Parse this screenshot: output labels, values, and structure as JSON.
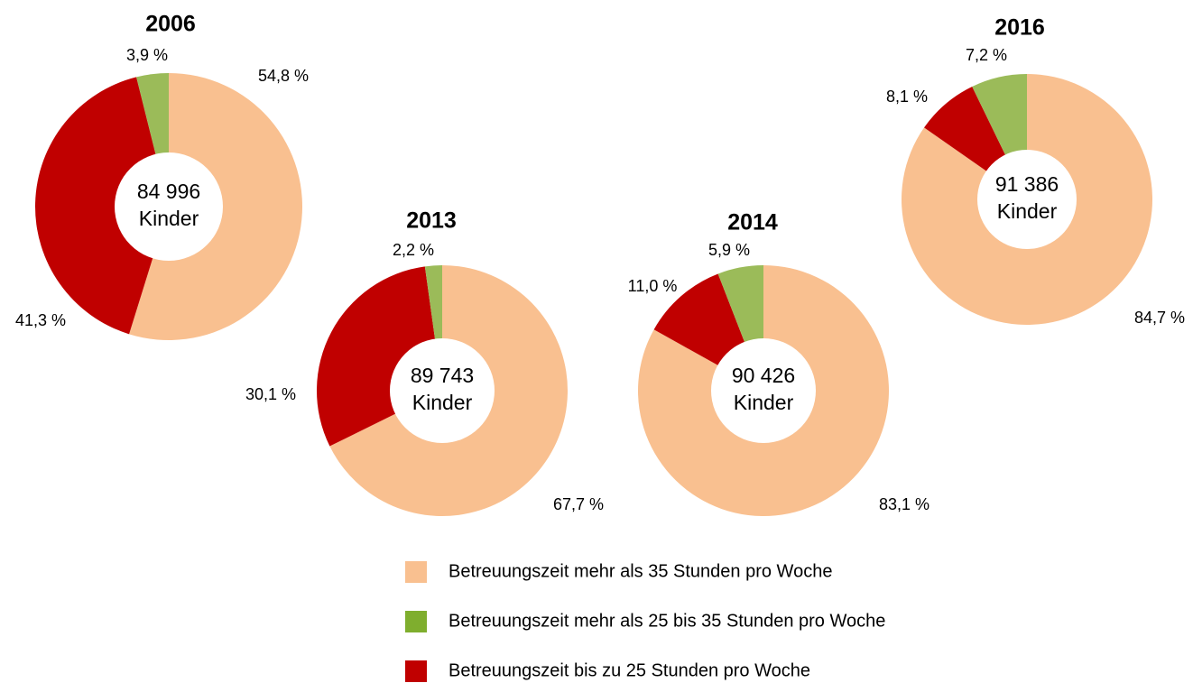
{
  "chart_data": [
    {
      "type": "pie",
      "title": "2006",
      "center_label": [
        "84 996",
        "Kinder"
      ],
      "values": [
        54.8,
        41.3,
        3.9
      ],
      "value_labels": [
        "54,8 %",
        "41,3 %",
        "3,9 %"
      ],
      "colors": [
        "#f9c090",
        "#c00000",
        "#9bbb59"
      ]
    },
    {
      "type": "pie",
      "title": "2013",
      "center_label": [
        "89 743",
        "Kinder"
      ],
      "values": [
        67.7,
        30.1,
        2.2
      ],
      "value_labels": [
        "67,7 %",
        "30,1 %",
        "2,2 %"
      ],
      "colors": [
        "#f9c090",
        "#c00000",
        "#9bbb59"
      ]
    },
    {
      "type": "pie",
      "title": "2014",
      "center_label": [
        "90 426",
        "Kinder"
      ],
      "values": [
        83.1,
        11.0,
        5.9
      ],
      "value_labels": [
        "83,1 %",
        "11,0 %",
        "5,9 %"
      ],
      "colors": [
        "#f9c090",
        "#c00000",
        "#9bbb59"
      ]
    },
    {
      "type": "pie",
      "title": "2016",
      "center_label": [
        "91 386",
        "Kinder"
      ],
      "values": [
        84.7,
        8.1,
        7.2
      ],
      "value_labels": [
        "84,7 %",
        "8,1 %",
        "7,2 %"
      ],
      "colors": [
        "#f9c090",
        "#c00000",
        "#9bbb59"
      ]
    }
  ],
  "legend": [
    {
      "label": "Betreuungszeit mehr als 35 Stunden pro Woche",
      "color": "#f9c090"
    },
    {
      "label": "Betreuungszeit mehr als 25 bis 35 Stunden pro Woche",
      "color": "#7fae2e"
    },
    {
      "label": "Betreuungszeit bis zu 25 Stunden pro Woche",
      "color": "#c00000"
    }
  ]
}
